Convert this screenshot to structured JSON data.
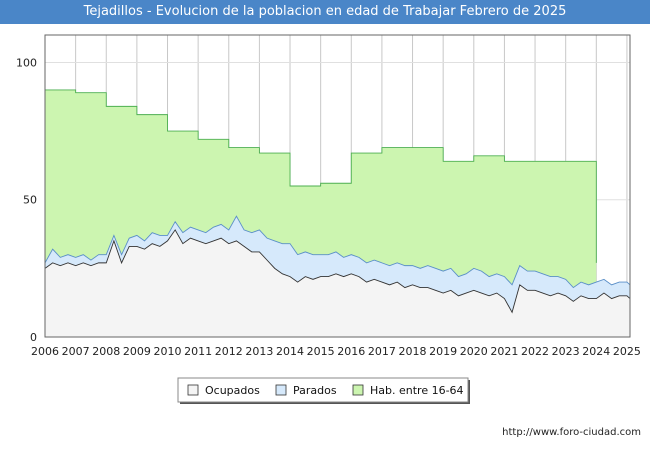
{
  "header": {
    "title": "Tejadillos - Evolucion de la poblacion en edad de Trabajar Febrero de 2025"
  },
  "footer": {
    "credit": "http://www.foro-ciudad.com"
  },
  "chart_data": {
    "type": "area",
    "title": "Tejadillos - Evolucion de la poblacion en edad de Trabajar Febrero de 2025",
    "xlim": [
      2006,
      2025.1
    ],
    "ylim": [
      0,
      110
    ],
    "yticks": [
      0,
      50,
      100
    ],
    "xticks": [
      2006,
      2007,
      2008,
      2009,
      2010,
      2011,
      2012,
      2013,
      2014,
      2015,
      2016,
      2017,
      2018,
      2019,
      2020,
      2021,
      2022,
      2023,
      2024,
      2025
    ],
    "grid": true,
    "legend_position": "bottom-center",
    "series": [
      {
        "name": "Hab. entre 16-64",
        "color": "#ccf5b0",
        "stroke": "#4caf50",
        "step": true,
        "points": [
          [
            2006,
            90
          ],
          [
            2007,
            89
          ],
          [
            2008,
            84
          ],
          [
            2009,
            81
          ],
          [
            2010,
            75
          ],
          [
            2011,
            72
          ],
          [
            2012,
            69
          ],
          [
            2013,
            67
          ],
          [
            2014,
            55
          ],
          [
            2015,
            56
          ],
          [
            2016,
            67
          ],
          [
            2017,
            69
          ],
          [
            2018,
            69
          ],
          [
            2019,
            64
          ],
          [
            2020,
            66
          ],
          [
            2021,
            64
          ],
          [
            2022,
            64
          ],
          [
            2023,
            64
          ],
          [
            2023.92,
            64
          ],
          [
            2024,
            27
          ]
        ]
      },
      {
        "name": "Parados",
        "color": "#d6e9fb",
        "stroke": "#5a8fc8",
        "points": [
          [
            2006,
            27
          ],
          [
            2006.25,
            32
          ],
          [
            2006.5,
            29
          ],
          [
            2006.75,
            30
          ],
          [
            2007,
            29
          ],
          [
            2007.25,
            30
          ],
          [
            2007.5,
            28
          ],
          [
            2007.75,
            30
          ],
          [
            2008,
            30
          ],
          [
            2008.25,
            37
          ],
          [
            2008.5,
            30
          ],
          [
            2008.75,
            36
          ],
          [
            2009,
            37
          ],
          [
            2009.25,
            35
          ],
          [
            2009.5,
            38
          ],
          [
            2009.75,
            37
          ],
          [
            2010,
            37
          ],
          [
            2010.25,
            42
          ],
          [
            2010.5,
            38
          ],
          [
            2010.75,
            40
          ],
          [
            2011,
            39
          ],
          [
            2011.25,
            38
          ],
          [
            2011.5,
            40
          ],
          [
            2011.75,
            41
          ],
          [
            2012,
            39
          ],
          [
            2012.25,
            44
          ],
          [
            2012.5,
            39
          ],
          [
            2012.75,
            38
          ],
          [
            2013,
            39
          ],
          [
            2013.25,
            36
          ],
          [
            2013.5,
            35
          ],
          [
            2013.75,
            34
          ],
          [
            2014,
            34
          ],
          [
            2014.25,
            30
          ],
          [
            2014.5,
            31
          ],
          [
            2014.75,
            30
          ],
          [
            2015,
            30
          ],
          [
            2015.25,
            30
          ],
          [
            2015.5,
            31
          ],
          [
            2015.75,
            29
          ],
          [
            2016,
            30
          ],
          [
            2016.25,
            29
          ],
          [
            2016.5,
            27
          ],
          [
            2016.75,
            28
          ],
          [
            2017,
            27
          ],
          [
            2017.25,
            26
          ],
          [
            2017.5,
            27
          ],
          [
            2017.75,
            26
          ],
          [
            2018,
            26
          ],
          [
            2018.25,
            25
          ],
          [
            2018.5,
            26
          ],
          [
            2018.75,
            25
          ],
          [
            2019,
            24
          ],
          [
            2019.25,
            25
          ],
          [
            2019.5,
            22
          ],
          [
            2019.75,
            23
          ],
          [
            2020,
            25
          ],
          [
            2020.25,
            24
          ],
          [
            2020.5,
            22
          ],
          [
            2020.75,
            23
          ],
          [
            2021,
            22
          ],
          [
            2021.25,
            19
          ],
          [
            2021.5,
            26
          ],
          [
            2021.75,
            24
          ],
          [
            2022,
            24
          ],
          [
            2022.25,
            23
          ],
          [
            2022.5,
            22
          ],
          [
            2022.75,
            22
          ],
          [
            2023,
            21
          ],
          [
            2023.25,
            18
          ],
          [
            2023.5,
            20
          ],
          [
            2023.75,
            19
          ],
          [
            2024,
            20
          ],
          [
            2024.25,
            21
          ],
          [
            2024.5,
            19
          ],
          [
            2024.75,
            20
          ],
          [
            2025,
            20
          ],
          [
            2025.1,
            19
          ]
        ]
      },
      {
        "name": "Ocupados",
        "color": "#f4f4f4",
        "stroke": "#333333",
        "points": [
          [
            2006,
            25
          ],
          [
            2006.25,
            27
          ],
          [
            2006.5,
            26
          ],
          [
            2006.75,
            27
          ],
          [
            2007,
            26
          ],
          [
            2007.25,
            27
          ],
          [
            2007.5,
            26
          ],
          [
            2007.75,
            27
          ],
          [
            2008,
            27
          ],
          [
            2008.25,
            35
          ],
          [
            2008.5,
            27
          ],
          [
            2008.75,
            33
          ],
          [
            2009,
            33
          ],
          [
            2009.25,
            32
          ],
          [
            2009.5,
            34
          ],
          [
            2009.75,
            33
          ],
          [
            2010,
            35
          ],
          [
            2010.25,
            39
          ],
          [
            2010.5,
            34
          ],
          [
            2010.75,
            36
          ],
          [
            2011,
            35
          ],
          [
            2011.25,
            34
          ],
          [
            2011.5,
            35
          ],
          [
            2011.75,
            36
          ],
          [
            2012,
            34
          ],
          [
            2012.25,
            35
          ],
          [
            2012.5,
            33
          ],
          [
            2012.75,
            31
          ],
          [
            2013,
            31
          ],
          [
            2013.25,
            28
          ],
          [
            2013.5,
            25
          ],
          [
            2013.75,
            23
          ],
          [
            2014,
            22
          ],
          [
            2014.25,
            20
          ],
          [
            2014.5,
            22
          ],
          [
            2014.75,
            21
          ],
          [
            2015,
            22
          ],
          [
            2015.25,
            22
          ],
          [
            2015.5,
            23
          ],
          [
            2015.75,
            22
          ],
          [
            2016,
            23
          ],
          [
            2016.25,
            22
          ],
          [
            2016.5,
            20
          ],
          [
            2016.75,
            21
          ],
          [
            2017,
            20
          ],
          [
            2017.25,
            19
          ],
          [
            2017.5,
            20
          ],
          [
            2017.75,
            18
          ],
          [
            2018,
            19
          ],
          [
            2018.25,
            18
          ],
          [
            2018.5,
            18
          ],
          [
            2018.75,
            17
          ],
          [
            2019,
            16
          ],
          [
            2019.25,
            17
          ],
          [
            2019.5,
            15
          ],
          [
            2019.75,
            16
          ],
          [
            2020,
            17
          ],
          [
            2020.25,
            16
          ],
          [
            2020.5,
            15
          ],
          [
            2020.75,
            16
          ],
          [
            2021,
            14
          ],
          [
            2021.25,
            9
          ],
          [
            2021.5,
            19
          ],
          [
            2021.75,
            17
          ],
          [
            2022,
            17
          ],
          [
            2022.25,
            16
          ],
          [
            2022.5,
            15
          ],
          [
            2022.75,
            16
          ],
          [
            2023,
            15
          ],
          [
            2023.25,
            13
          ],
          [
            2023.5,
            15
          ],
          [
            2023.75,
            14
          ],
          [
            2024,
            14
          ],
          [
            2024.25,
            16
          ],
          [
            2024.5,
            14
          ],
          [
            2024.75,
            15
          ],
          [
            2025,
            15
          ],
          [
            2025.1,
            14
          ]
        ]
      }
    ]
  }
}
